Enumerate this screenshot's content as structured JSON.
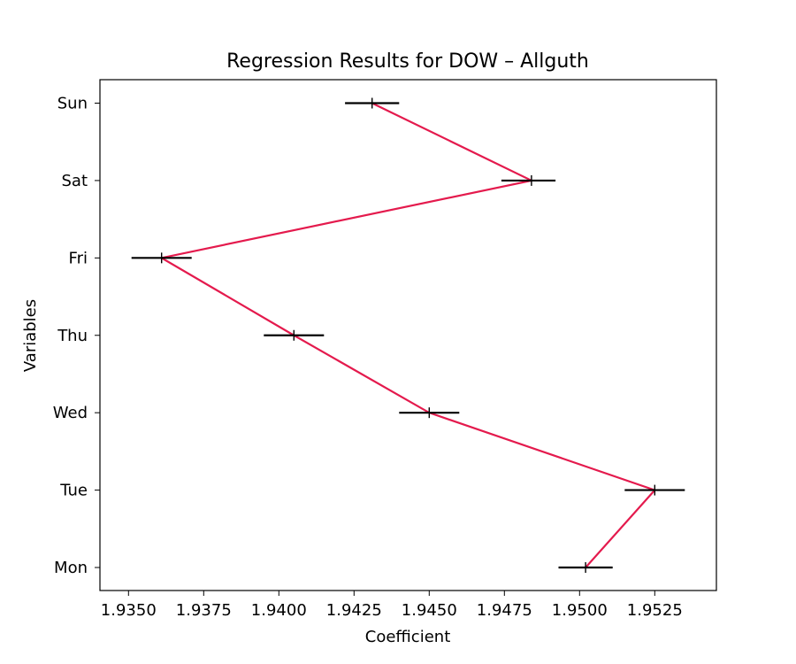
{
  "chart_data": {
    "type": "line",
    "title": "Regression Results for DOW – Allguth",
    "xlabel": "Coefficient",
    "ylabel": "Variables",
    "categories": [
      "Mon",
      "Tue",
      "Wed",
      "Thu",
      "Fri",
      "Sat",
      "Sun"
    ],
    "values": [
      1.9502,
      1.9525,
      1.945,
      1.9405,
      1.9361,
      1.9484,
      1.9431
    ],
    "ci_lower": [
      1.9493,
      1.9515,
      1.944,
      1.9395,
      1.9351,
      1.9474,
      1.9422
    ],
    "ci_upper": [
      1.9511,
      1.9535,
      1.946,
      1.9415,
      1.9371,
      1.9492,
      1.944
    ],
    "xlim": [
      1.93405,
      1.95455
    ],
    "xticks": [
      "1.9350",
      "1.9375",
      "1.9400",
      "1.9425",
      "1.9450",
      "1.9475",
      "1.9500",
      "1.9525"
    ],
    "line_color": "#e41a4d",
    "errorbar_color": "#000000",
    "grid": false,
    "legend": "none"
  }
}
